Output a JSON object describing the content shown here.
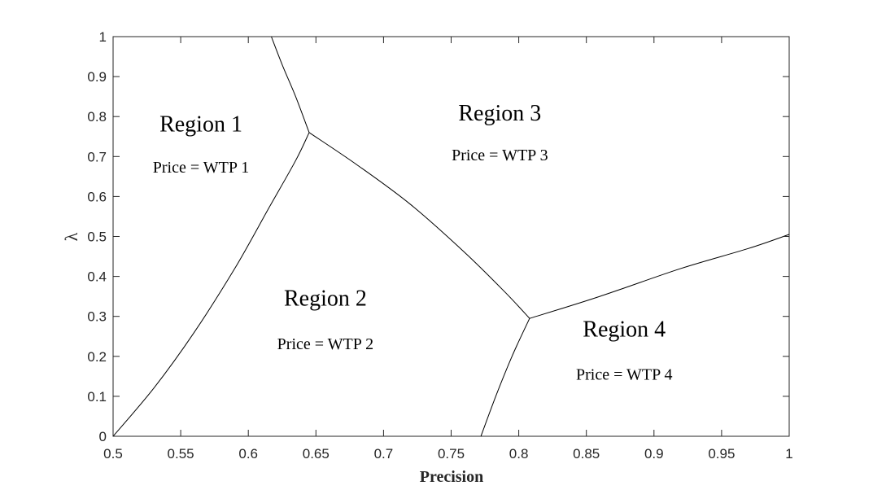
{
  "chart_data": {
    "type": "line",
    "title": "",
    "xlabel": "Precision",
    "ylabel": "λ",
    "xlim": [
      0.5,
      1
    ],
    "ylim": [
      0,
      1
    ],
    "grid": false,
    "xticks": [
      0.5,
      0.55,
      0.6,
      0.65,
      0.7,
      0.75,
      0.8,
      0.85,
      0.9,
      0.95,
      1
    ],
    "xtick_labels": [
      "0.5",
      "0.55",
      "0.6",
      "0.65",
      "0.7",
      "0.75",
      "0.8",
      "0.85",
      "0.9",
      "0.95",
      "1"
    ],
    "yticks": [
      0,
      0.1,
      0.2,
      0.3,
      0.4,
      0.5,
      0.6,
      0.7,
      0.8,
      0.9,
      1
    ],
    "ytick_labels": [
      "0",
      "0.1",
      "0.2",
      "0.3",
      "0.4",
      "0.5",
      "0.6",
      "0.7",
      "0.8",
      "0.9",
      "1"
    ],
    "series": [
      {
        "x": [
          0.617,
          0.625,
          0.635,
          0.645
        ],
        "y": [
          1.0,
          0.93,
          0.85,
          0.76
        ]
      },
      {
        "x": [
          0.5,
          0.53,
          0.56,
          0.59,
          0.615,
          0.635,
          0.645
        ],
        "y": [
          0.0,
          0.12,
          0.26,
          0.42,
          0.57,
          0.69,
          0.76
        ]
      },
      {
        "x": [
          0.645,
          0.68,
          0.72,
          0.76,
          0.79,
          0.808
        ],
        "y": [
          0.76,
          0.68,
          0.58,
          0.46,
          0.36,
          0.295
        ]
      },
      {
        "x": [
          0.808,
          0.795,
          0.783,
          0.772
        ],
        "y": [
          0.295,
          0.2,
          0.1,
          0.0
        ]
      },
      {
        "x": [
          0.808,
          0.86,
          0.92,
          0.97,
          1.0
        ],
        "y": [
          0.295,
          0.35,
          0.42,
          0.47,
          0.505
        ]
      }
    ],
    "annotations": [
      {
        "title": "Region 1",
        "price": "Price = WTP 1",
        "x": 0.565,
        "y_title": 0.763,
        "y_price": 0.66
      },
      {
        "title": "Region 2",
        "price": "Price = WTP 2",
        "x": 0.657,
        "y_title": 0.327,
        "y_price": 0.218
      },
      {
        "title": "Region 3",
        "price": "Price = WTP 3",
        "x": 0.786,
        "y_title": 0.79,
        "y_price": 0.69
      },
      {
        "title": "Region 4",
        "price": "Price = WTP 4",
        "x": 0.878,
        "y_title": 0.25,
        "y_price": 0.142
      }
    ]
  }
}
